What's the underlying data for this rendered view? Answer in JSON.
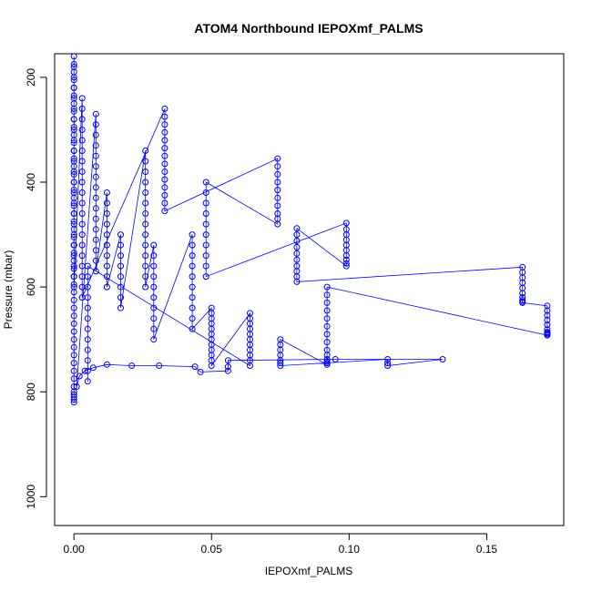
{
  "chart_data": {
    "type": "scatter",
    "title": "ATOM4 Northbound IEPOXmf_PALMS",
    "xlabel": "IEPOXmf_PALMS",
    "ylabel": "Pressure (mbar)",
    "xlim": [
      -0.007,
      0.178
    ],
    "ylim": [
      1055,
      155
    ],
    "y_reversed": true,
    "x_ticks": [
      0.0,
      0.05,
      0.1,
      0.15
    ],
    "x_tick_labels": [
      "0.00",
      "0.05",
      "0.10",
      "0.15"
    ],
    "y_ticks": [
      200,
      400,
      600,
      800,
      1000
    ],
    "y_tick_labels": [
      "200",
      "400",
      "600",
      "800",
      "1000"
    ],
    "grid": false,
    "legend": "none",
    "series_color": "#0000ff",
    "series": [
      {
        "x": [
          0.0,
          0.0,
          0.0,
          0.0,
          0.0,
          0.0,
          0.0,
          0.0,
          0.0,
          0.0,
          0.0,
          0.0,
          0.0,
          0.0,
          0.0,
          0.0,
          0.0,
          0.0,
          0.0,
          0.0,
          0.0,
          0.0,
          0.0,
          0.0,
          0.0,
          0.0,
          0.0,
          0.0,
          0.0,
          0.0,
          0.0,
          0.0,
          0.0,
          0.0,
          0.0,
          0.0,
          0.0,
          0.0,
          0.0,
          0.0,
          0.0,
          0.0,
          0.0,
          0.0,
          0.0,
          0.0,
          0.0,
          0.0,
          0.0,
          0.0,
          0.0,
          0.0,
          0.0,
          0.0,
          0.0,
          0.0,
          0.0,
          0.0,
          0.0,
          0.0,
          0.0,
          0.0,
          0.0,
          0.0,
          0.0,
          0.0,
          0.0,
          0.0,
          0.0,
          0.0,
          0.003,
          0.003,
          0.003,
          0.003,
          0.003,
          0.003,
          0.003,
          0.003,
          0.003,
          0.003,
          0.003,
          0.003,
          0.003,
          0.003,
          0.003,
          0.003,
          0.003,
          0.003,
          0.003,
          0.003,
          0.033,
          0.033,
          0.033,
          0.033,
          0.033,
          0.033,
          0.033,
          0.033,
          0.033,
          0.033,
          0.033,
          0.033,
          0.033,
          0.033,
          0.074,
          0.074,
          0.074,
          0.074,
          0.074,
          0.074,
          0.074,
          0.074,
          0.074,
          0.074,
          0.048,
          0.048,
          0.048,
          0.048,
          0.048,
          0.048,
          0.048,
          0.048,
          0.048,
          0.048,
          0.099,
          0.099,
          0.099,
          0.099,
          0.099,
          0.099,
          0.099,
          0.099,
          0.099,
          0.099,
          0.081,
          0.081,
          0.081,
          0.081,
          0.081,
          0.081,
          0.081,
          0.081,
          0.081,
          0.081,
          0.163,
          0.163,
          0.163,
          0.163,
          0.163,
          0.163,
          0.163,
          0.163,
          0.163,
          0.163,
          0.172,
          0.172,
          0.172,
          0.172,
          0.172,
          0.172,
          0.172,
          0.172,
          0.172,
          0.172,
          0.092,
          0.092,
          0.092,
          0.092,
          0.092,
          0.092,
          0.092,
          0.092,
          0.092,
          0.092,
          0.092,
          0.092,
          0.092,
          0.092,
          0.075,
          0.075,
          0.075,
          0.075,
          0.075,
          0.075,
          0.075,
          0.114,
          0.114,
          0.114,
          0.134,
          0.095,
          0.056,
          0.056,
          0.056,
          0.046,
          0.044,
          0.031,
          0.021,
          0.012,
          0.007,
          0.004,
          0.002,
          0.001,
          0.008,
          0.008,
          0.008,
          0.008,
          0.008,
          0.008,
          0.008,
          0.008,
          0.008,
          0.008,
          0.008,
          0.008,
          0.008,
          0.008,
          0.008,
          0.008,
          0.012,
          0.012,
          0.012,
          0.012,
          0.012,
          0.012,
          0.012,
          0.012,
          0.012,
          0.012,
          0.017,
          0.017,
          0.017,
          0.017,
          0.017,
          0.017,
          0.017,
          0.017,
          0.026,
          0.026,
          0.026,
          0.026,
          0.026,
          0.026,
          0.026,
          0.026,
          0.026,
          0.026,
          0.026,
          0.026,
          0.026,
          0.026,
          0.029,
          0.029,
          0.029,
          0.029,
          0.029,
          0.029,
          0.029,
          0.029,
          0.029,
          0.029,
          0.043,
          0.043,
          0.043,
          0.043,
          0.043,
          0.043,
          0.043,
          0.043,
          0.043,
          0.043,
          0.05,
          0.05,
          0.05,
          0.05,
          0.05,
          0.05,
          0.05,
          0.05,
          0.05,
          0.05,
          0.05,
          0.05,
          0.064,
          0.064,
          0.064,
          0.064,
          0.064,
          0.064,
          0.064,
          0.064,
          0.064,
          0.064,
          0.064,
          0.005,
          0.005,
          0.005,
          0.005,
          0.005,
          0.005,
          0.005,
          0.005,
          0.005,
          0.005,
          0.005,
          0.005
        ],
        "y": [
          160,
          175,
          190,
          205,
          220,
          235,
          250,
          265,
          280,
          295,
          310,
          325,
          340,
          355,
          370,
          385,
          400,
          415,
          430,
          445,
          460,
          475,
          490,
          505,
          520,
          535,
          550,
          565,
          580,
          595,
          610,
          625,
          640,
          655,
          670,
          685,
          700,
          715,
          730,
          745,
          760,
          775,
          790,
          800,
          805,
          810,
          815,
          820,
          180,
          200,
          220,
          240,
          260,
          280,
          300,
          320,
          340,
          360,
          380,
          400,
          420,
          440,
          460,
          480,
          500,
          520,
          540,
          560,
          580,
          600,
          240,
          260,
          280,
          300,
          320,
          340,
          360,
          380,
          400,
          420,
          440,
          460,
          480,
          500,
          520,
          540,
          560,
          580,
          600,
          620,
          260,
          275,
          290,
          305,
          320,
          335,
          350,
          365,
          380,
          395,
          410,
          425,
          440,
          455,
          355,
          370,
          385,
          400,
          415,
          430,
          445,
          460,
          470,
          480,
          400,
          420,
          440,
          460,
          480,
          500,
          520,
          540,
          560,
          580,
          478,
          490,
          500,
          510,
          520,
          530,
          540,
          548,
          555,
          560,
          488,
          500,
          512,
          524,
          536,
          548,
          560,
          570,
          580,
          590,
          562,
          572,
          582,
          592,
          602,
          612,
          620,
          625,
          628,
          630,
          636,
          645,
          654,
          663,
          672,
          681,
          686,
          688,
          690,
          692,
          600,
          615,
          630,
          645,
          660,
          675,
          690,
          705,
          720,
          730,
          738,
          742,
          745,
          748,
          700,
          710,
          720,
          730,
          740,
          745,
          750,
          738,
          745,
          750,
          738,
          738,
          740,
          752,
          760,
          762,
          752,
          750,
          750,
          748,
          754,
          760,
          770,
          790,
          270,
          290,
          310,
          330,
          350,
          370,
          390,
          410,
          430,
          450,
          470,
          490,
          510,
          530,
          550,
          570,
          420,
          440,
          460,
          480,
          500,
          520,
          540,
          560,
          580,
          600,
          500,
          520,
          540,
          560,
          580,
          600,
          620,
          640,
          340,
          360,
          380,
          400,
          420,
          440,
          460,
          480,
          500,
          520,
          540,
          560,
          580,
          600,
          520,
          540,
          560,
          580,
          600,
          620,
          640,
          660,
          680,
          700,
          500,
          520,
          540,
          560,
          580,
          600,
          620,
          640,
          660,
          680,
          640,
          650,
          660,
          670,
          680,
          690,
          700,
          710,
          720,
          730,
          740,
          750,
          650,
          660,
          670,
          680,
          690,
          700,
          710,
          720,
          730,
          740,
          750,
          560,
          580,
          600,
          620,
          640,
          660,
          680,
          700,
          720,
          740,
          760,
          780
        ]
      }
    ]
  }
}
